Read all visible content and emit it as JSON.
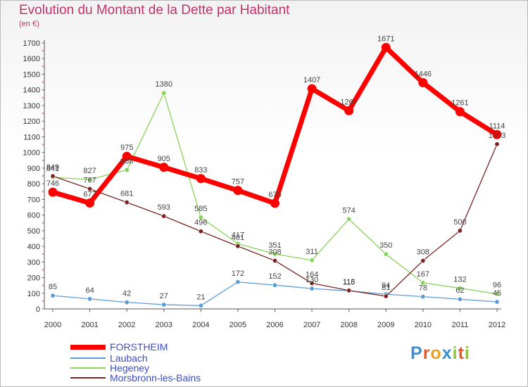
{
  "header": {
    "title": "Evolution du Montant de la Dette par Habitant",
    "unit": "(en €)"
  },
  "logo": {
    "text": "Proxiti",
    "letters": [
      "P",
      "r",
      "o",
      "x",
      "i",
      "t",
      "i"
    ]
  },
  "chart_data": {
    "type": "line",
    "title": "Evolution du Montant de la Dette par Habitant",
    "ylabel": "(en €)",
    "xlabel": "",
    "x": [
      "2000",
      "2001",
      "2002",
      "2003",
      "2004",
      "2005",
      "2006",
      "2007",
      "2008",
      "2009",
      "2010",
      "2011",
      "2012"
    ],
    "ylim": [
      0,
      1700
    ],
    "yticks": [
      0,
      100,
      200,
      300,
      400,
      500,
      600,
      700,
      800,
      900,
      1000,
      1100,
      1200,
      1300,
      1400,
      1500,
      1600,
      1700
    ],
    "grid": "none",
    "legend_placement": "bottom-left",
    "series": [
      {
        "name": "FORSTHEIM",
        "color": "#ff0000",
        "values": [
          746,
          677,
          975,
          905,
          833,
          757,
          675,
          1407,
          1267,
          1671,
          1446,
          1261,
          1114
        ],
        "labels": [
          "746",
          "677",
          "975",
          "905",
          "833",
          "757",
          "675",
          "1407",
          "1267",
          "1671",
          "1446",
          "1261",
          "1114"
        ]
      },
      {
        "name": "Laubach",
        "color": "#5b9bd5",
        "values": [
          85,
          64,
          42,
          27,
          21,
          172,
          152,
          130,
          115,
          94,
          78,
          62,
          45
        ],
        "labels": [
          "85",
          "64",
          "42",
          "27",
          "21",
          "172",
          "152",
          "130",
          "115",
          "94",
          "78",
          "62",
          "45"
        ]
      },
      {
        "name": "Hegeney",
        "color": "#88d45a",
        "values": [
          841,
          827,
          888,
          1380,
          585,
          417,
          351,
          311,
          574,
          350,
          167,
          132,
          96
        ],
        "labels": [
          "841",
          "827",
          "888",
          "1380",
          "585",
          "417",
          "351",
          "311",
          "574",
          "350",
          "167",
          "132",
          "96"
        ]
      },
      {
        "name": "Morsbronn-les-Bains",
        "color": "#7b2424",
        "values": [
          849,
          767,
          681,
          593,
          496,
          401,
          308,
          164,
          118,
          81,
          308,
          500,
          1053
        ],
        "labels": [
          "849",
          "767",
          "681",
          "593",
          "496",
          "401",
          "308",
          "164",
          "118",
          "81",
          "308",
          "500",
          "1053"
        ]
      }
    ]
  }
}
